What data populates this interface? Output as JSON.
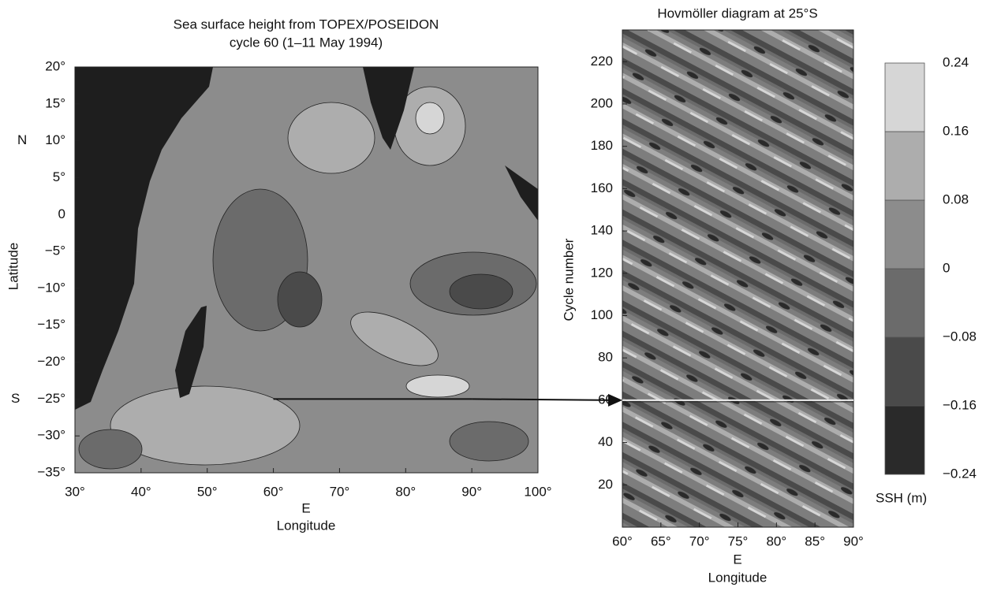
{
  "chart_data": [
    {
      "type": "map",
      "title": "Sea surface height from TOPEX/POSEIDON",
      "subtitle": "cycle 60 (1–11 May 1994)",
      "xlabel": "Longitude",
      "xunit": "E",
      "ylabel": "Latitude",
      "north": "N",
      "south": "S",
      "xlim": [
        30,
        100
      ],
      "ylim": [
        -35,
        20
      ],
      "xticks": [
        {
          "value": 30,
          "label": "30°"
        },
        {
          "value": 40,
          "label": "40°"
        },
        {
          "value": 50,
          "label": "50°"
        },
        {
          "value": 60,
          "label": "60°"
        },
        {
          "value": 70,
          "label": "70°"
        },
        {
          "value": 80,
          "label": "80°"
        },
        {
          "value": 90,
          "label": "90°"
        },
        {
          "value": 100,
          "label": "100°"
        }
      ],
      "yticks": [
        {
          "value": 20,
          "label": "20°"
        },
        {
          "value": 15,
          "label": "15°"
        },
        {
          "value": 10,
          "label": "10°"
        },
        {
          "value": 5,
          "label": "5°"
        },
        0,
        {
          "value": -5,
          "label": "−5°"
        },
        {
          "value": -10,
          "label": "−10°"
        },
        {
          "value": -15,
          "label": "−15°"
        },
        {
          "value": -20,
          "label": "−20°"
        },
        {
          "value": -25,
          "label": "−25°"
        },
        {
          "value": -30,
          "label": "−30°"
        },
        {
          "value": -35,
          "label": "−35°"
        }
      ],
      "section_lat": -25,
      "section_lon": [
        60,
        90
      ]
    },
    {
      "type": "hovmoller",
      "title": "Hovmöller diagram at 25°S",
      "xlabel": "Longitude",
      "xunit": "E",
      "ylabel": "Cycle number",
      "xlim": [
        60,
        90
      ],
      "ylim": [
        0,
        235
      ],
      "xticks": [
        {
          "value": 60,
          "label": "60°"
        },
        {
          "value": 65,
          "label": "65°"
        },
        {
          "value": 70,
          "label": "70°"
        },
        {
          "value": 75,
          "label": "75°"
        },
        {
          "value": 80,
          "label": "80°"
        },
        {
          "value": 85,
          "label": "85°"
        },
        {
          "value": 90,
          "label": "90°"
        }
      ],
      "yticks": [
        20,
        40,
        60,
        80,
        100,
        120,
        140,
        160,
        180,
        200,
        220
      ],
      "highlight_cycle": 60
    },
    {
      "type": "colorbar",
      "label": "SSH (m)",
      "ylim": [
        -0.24,
        0.24
      ],
      "ticks": [
        {
          "value": -0.24,
          "label": "−0.24"
        },
        {
          "value": -0.16,
          "label": "−0.16"
        },
        {
          "value": -0.08,
          "label": "−0.08"
        },
        0,
        0.08,
        0.16,
        0.24
      ],
      "colors": [
        "#2a2a2a",
        "#4a4a4a",
        "#6b6b6b",
        "#8c8c8c",
        "#adadad",
        "#d6d6d6"
      ]
    }
  ]
}
